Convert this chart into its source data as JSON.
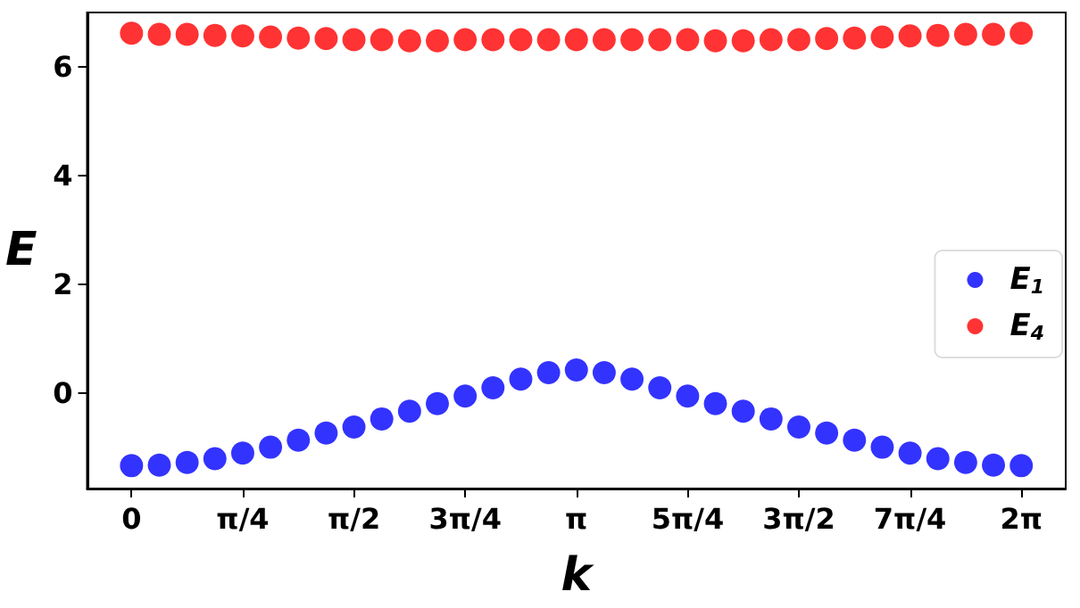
{
  "chart_data": {
    "type": "scatter",
    "xlabel": "k",
    "ylabel": "E",
    "x": [
      0,
      0.1963,
      0.3927,
      0.589,
      0.7854,
      0.9817,
      1.1781,
      1.3744,
      1.5708,
      1.7671,
      1.9635,
      2.1598,
      2.3562,
      2.5525,
      2.7489,
      2.9452,
      3.1416,
      3.3379,
      3.5343,
      3.7306,
      3.927,
      4.1233,
      4.3197,
      4.516,
      4.7124,
      4.9087,
      5.1051,
      5.3014,
      5.4978,
      5.6941,
      5.8905,
      6.0868,
      6.2832
    ],
    "series": [
      {
        "name": "E$_{1}$",
        "color": "#0000ff",
        "values": [
          -1.33,
          -1.32,
          -1.27,
          -1.2,
          -1.1,
          -0.99,
          -0.86,
          -0.73,
          -0.62,
          -0.47,
          -0.33,
          -0.19,
          -0.05,
          0.1,
          0.26,
          0.38,
          0.43,
          0.38,
          0.26,
          0.1,
          -0.05,
          -0.19,
          -0.33,
          -0.47,
          -0.62,
          -0.73,
          -0.86,
          -0.99,
          -1.1,
          -1.2,
          -1.27,
          -1.32,
          -1.33
        ]
      },
      {
        "name": "E$_{4}$",
        "color": "#ff0000",
        "values": [
          6.62,
          6.6,
          6.6,
          6.58,
          6.57,
          6.55,
          6.53,
          6.52,
          6.5,
          6.5,
          6.48,
          6.48,
          6.5,
          6.5,
          6.5,
          6.5,
          6.5,
          6.5,
          6.5,
          6.5,
          6.5,
          6.48,
          6.48,
          6.5,
          6.5,
          6.52,
          6.53,
          6.55,
          6.57,
          6.58,
          6.6,
          6.6,
          6.62
        ]
      }
    ],
    "xlim": [
      -0.314,
      6.597
    ],
    "ylim": [
      -1.75,
      7
    ],
    "xticks": [
      {
        "value": 0,
        "label": "0"
      },
      {
        "value": 0.7854,
        "label": "π/4"
      },
      {
        "value": 1.5708,
        "label": "π/2"
      },
      {
        "value": 2.3562,
        "label": "3π/4"
      },
      {
        "value": 3.1416,
        "label": "π"
      },
      {
        "value": 3.927,
        "label": "5π/4"
      },
      {
        "value": 4.7124,
        "label": "3π/2"
      },
      {
        "value": 5.4978,
        "label": "7π/4"
      },
      {
        "value": 6.2832,
        "label": "2π"
      }
    ],
    "yticks": [
      0,
      2,
      4,
      6
    ],
    "marker": "circle",
    "legend": "right",
    "grid": false
  }
}
